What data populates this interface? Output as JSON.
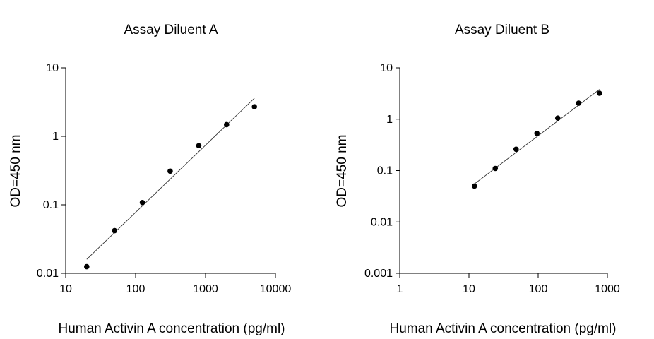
{
  "chart_data": [
    {
      "type": "scatter",
      "title": "Assay Diluent A",
      "xlabel": "Human Activin A concentration (pg/ml)",
      "ylabel": "OD=450 nm",
      "x_scale": "log",
      "y_scale": "log",
      "xlim": [
        10,
        10000
      ],
      "ylim": [
        0.01,
        10
      ],
      "x_ticks": [
        10,
        100,
        1000,
        10000
      ],
      "x_tick_labels": [
        "10",
        "100",
        "1000",
        "10000"
      ],
      "y_ticks": [
        0.01,
        0.1,
        1,
        10
      ],
      "y_tick_labels": [
        "0.01",
        "0.1",
        "1",
        "10"
      ],
      "grid": false,
      "series": [
        {
          "points": [
            {
              "x": 20,
              "y": 0.0125
            },
            {
              "x": 50,
              "y": 0.042
            },
            {
              "x": 125,
              "y": 0.108
            },
            {
              "x": 312,
              "y": 0.31
            },
            {
              "x": 800,
              "y": 0.73
            },
            {
              "x": 2000,
              "y": 1.48
            },
            {
              "x": 5000,
              "y": 2.7
            }
          ]
        }
      ],
      "fit_line": {
        "x": [
          20,
          5000
        ],
        "y": [
          0.016,
          3.6
        ]
      }
    },
    {
      "type": "scatter",
      "title": "Assay Diluent B",
      "xlabel": "Human Activin A concentration (pg/ml)",
      "ylabel": "OD=450 nm",
      "x_scale": "log",
      "y_scale": "log",
      "xlim": [
        1,
        1000
      ],
      "ylim": [
        0.001,
        10
      ],
      "x_ticks": [
        1,
        10,
        100,
        1000
      ],
      "x_tick_labels": [
        "1",
        "10",
        "100",
        "1000"
      ],
      "y_ticks": [
        0.001,
        0.01,
        0.1,
        1,
        10
      ],
      "y_tick_labels": [
        "0.001",
        "0.01",
        "0.1",
        "1",
        "10"
      ],
      "grid": false,
      "series": [
        {
          "points": [
            {
              "x": 12,
              "y": 0.05
            },
            {
              "x": 24,
              "y": 0.11
            },
            {
              "x": 48,
              "y": 0.26
            },
            {
              "x": 96,
              "y": 0.53
            },
            {
              "x": 192,
              "y": 1.05
            },
            {
              "x": 384,
              "y": 2.05
            },
            {
              "x": 768,
              "y": 3.2
            }
          ]
        }
      ],
      "fit_line": {
        "x": [
          12,
          768
        ],
        "y": [
          0.055,
          3.8
        ]
      }
    }
  ]
}
